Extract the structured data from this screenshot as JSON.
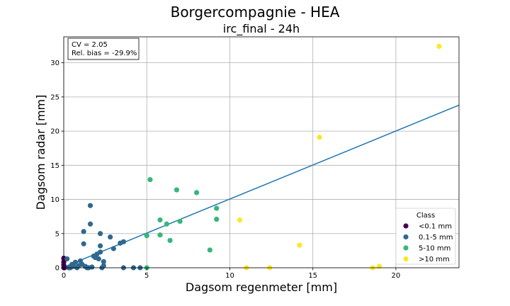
{
  "figure": {
    "suptitle": "Borgercompagnie - HEA",
    "title": "irc_final - 24h"
  },
  "chart_data": {
    "type": "scatter",
    "title": "irc_final - 24h",
    "xlabel": "Dagsom regenmeter [mm]",
    "ylabel": "Dagsom radar [mm]",
    "xlim": [
      0,
      23.8
    ],
    "ylim": [
      0,
      33.8
    ],
    "xticks": [
      "0",
      "5",
      "10",
      "15",
      "20"
    ],
    "yticks": [
      "0",
      "5",
      "10",
      "15",
      "20",
      "25",
      "30"
    ],
    "grid": true,
    "annotation": {
      "line1": "CV = 2.05",
      "line2": "Rel. bias = -29.9%"
    },
    "fit_line": {
      "color": "#1f77b4",
      "x": [
        0,
        23.8
      ],
      "y": [
        0.1,
        23.8
      ]
    },
    "legend": {
      "title": "Class",
      "placement": "lower-right"
    },
    "series": [
      {
        "name": "<0.1 mm",
        "color": "#440154",
        "points": [
          [
            0.0,
            1.4
          ],
          [
            0.0,
            0.8
          ],
          [
            0.0,
            0.4
          ],
          [
            0.0,
            0.0
          ],
          [
            0.05,
            0.0
          ],
          [
            0.02,
            1.1
          ]
        ]
      },
      {
        "name": "0.1-5 mm",
        "color": "#31688e",
        "points": [
          [
            0.2,
            1.3
          ],
          [
            0.3,
            0.0
          ],
          [
            0.5,
            0.5
          ],
          [
            0.6,
            0.2
          ],
          [
            0.7,
            0.8
          ],
          [
            0.8,
            0.0
          ],
          [
            0.9,
            0.3
          ],
          [
            1.0,
            1.0
          ],
          [
            1.1,
            0.5
          ],
          [
            1.2,
            5.3
          ],
          [
            1.2,
            3.5
          ],
          [
            1.3,
            0.2
          ],
          [
            1.5,
            0.0
          ],
          [
            1.6,
            9.1
          ],
          [
            1.6,
            6.4
          ],
          [
            1.7,
            0.1
          ],
          [
            1.8,
            1.7
          ],
          [
            1.9,
            1.5
          ],
          [
            2.0,
            2.0
          ],
          [
            2.1,
            1.3
          ],
          [
            2.2,
            5.0
          ],
          [
            2.2,
            3.2
          ],
          [
            2.2,
            2.3
          ],
          [
            2.3,
            0.0
          ],
          [
            2.4,
            0.9
          ],
          [
            2.4,
            0.3
          ],
          [
            2.8,
            4.5
          ],
          [
            3.0,
            2.8
          ],
          [
            3.4,
            3.6
          ],
          [
            3.6,
            3.8
          ],
          [
            3.6,
            0.0
          ],
          [
            4.2,
            0.0
          ],
          [
            4.6,
            0.0
          ],
          [
            1.4,
            0.0
          ],
          [
            0.4,
            0.0
          ]
        ]
      },
      {
        "name": "5-10 mm",
        "color": "#35b779",
        "points": [
          [
            5.0,
            4.7
          ],
          [
            5.0,
            0.0
          ],
          [
            5.2,
            12.9
          ],
          [
            5.8,
            7.0
          ],
          [
            5.8,
            4.8
          ],
          [
            6.2,
            6.4
          ],
          [
            6.4,
            4.0
          ],
          [
            6.8,
            11.4
          ],
          [
            7.0,
            6.8
          ],
          [
            8.0,
            11.0
          ],
          [
            8.8,
            2.6
          ],
          [
            9.2,
            8.7
          ],
          [
            9.2,
            7.1
          ]
        ]
      },
      {
        "name": ">10 mm",
        "color": "#fde725",
        "points": [
          [
            10.6,
            7.0
          ],
          [
            11.0,
            0.0
          ],
          [
            12.4,
            0.0
          ],
          [
            14.2,
            3.3
          ],
          [
            15.4,
            19.1
          ],
          [
            18.6,
            0.0
          ],
          [
            19.0,
            0.2
          ],
          [
            22.6,
            32.4
          ]
        ]
      }
    ]
  }
}
